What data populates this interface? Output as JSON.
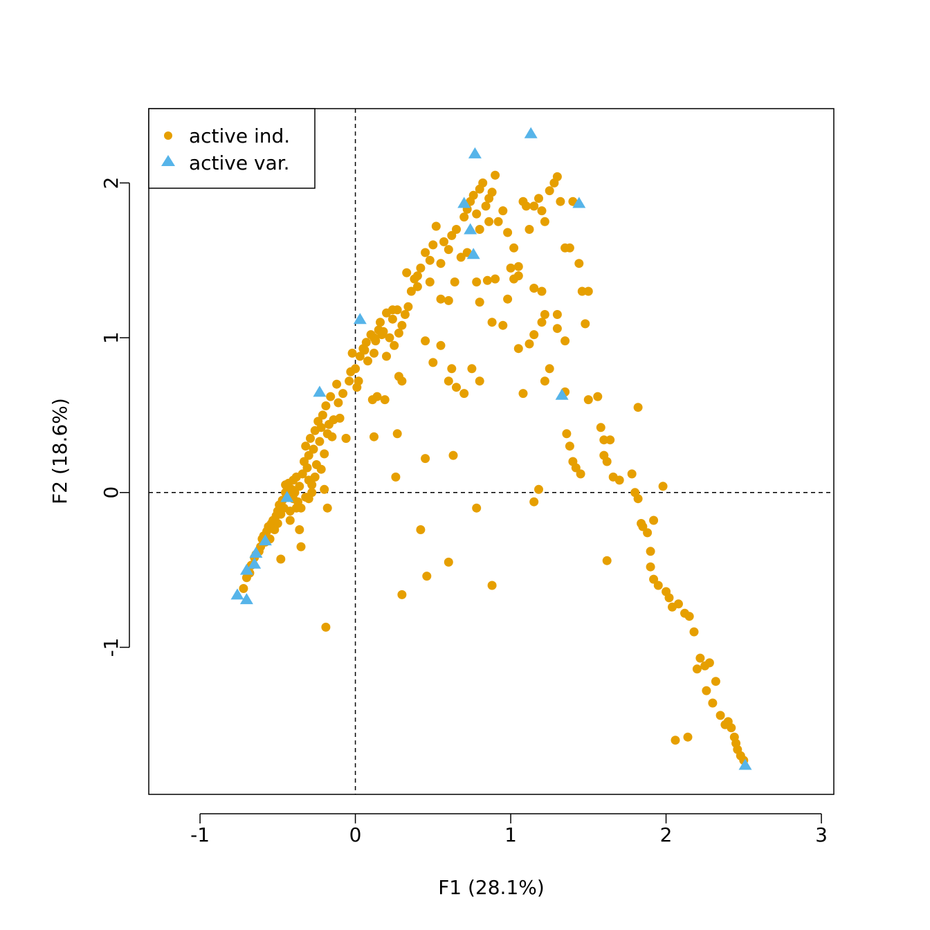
{
  "chart_data": {
    "type": "scatter",
    "xlabel": "F1 (28.1%)",
    "ylabel": "F2 (18.6%)",
    "xlim": [
      -1.33,
      3.08
    ],
    "ylim": [
      -1.95,
      2.48
    ],
    "xticks": [
      -1,
      0,
      1,
      2,
      3
    ],
    "yticks": [
      -1,
      0,
      1,
      2
    ],
    "xtick_labels": [
      "-1",
      "0",
      "1",
      "2",
      "3"
    ],
    "ytick_labels": [
      "-1",
      "0",
      "1",
      "2"
    ],
    "reference_lines": {
      "x": 0,
      "y": 0,
      "style": "dashed"
    },
    "legend_position": "top-left",
    "colors": {
      "ind": "#E69F00",
      "var": "#56B4E9"
    },
    "series": [
      {
        "name": "active ind.",
        "marker": "circle",
        "points": [
          [
            -0.72,
            -0.62
          ],
          [
            -0.7,
            -0.55
          ],
          [
            -0.68,
            -0.52
          ],
          [
            -0.67,
            -0.47
          ],
          [
            -0.65,
            -0.42
          ],
          [
            -0.64,
            -0.4
          ],
          [
            -0.62,
            -0.38
          ],
          [
            -0.61,
            -0.35
          ],
          [
            -0.6,
            -0.3
          ],
          [
            -0.59,
            -0.28
          ],
          [
            -0.58,
            -0.32
          ],
          [
            -0.57,
            -0.25
          ],
          [
            -0.56,
            -0.22
          ],
          [
            -0.55,
            -0.3
          ],
          [
            -0.54,
            -0.2
          ],
          [
            -0.53,
            -0.18
          ],
          [
            -0.52,
            -0.24
          ],
          [
            -0.51,
            -0.15
          ],
          [
            -0.5,
            -0.12
          ],
          [
            -0.5,
            -0.2
          ],
          [
            -0.49,
            -0.08
          ],
          [
            -0.48,
            -0.14
          ],
          [
            -0.47,
            -0.05
          ],
          [
            -0.46,
            -0.1
          ],
          [
            -0.45,
            0.0
          ],
          [
            -0.45,
            0.05
          ],
          [
            -0.44,
            -0.02
          ],
          [
            -0.43,
            0.06
          ],
          [
            -0.42,
            -0.12
          ],
          [
            -0.41,
            0.02
          ],
          [
            -0.4,
            0.08
          ],
          [
            -0.4,
            -0.04
          ],
          [
            -0.39,
            0.0
          ],
          [
            -0.38,
            0.1
          ],
          [
            -0.37,
            -0.06
          ],
          [
            -0.36,
            0.04
          ],
          [
            -0.35,
            -0.1
          ],
          [
            -0.34,
            0.12
          ],
          [
            -0.33,
            0.2
          ],
          [
            -0.32,
            0.3
          ],
          [
            -0.31,
            0.16
          ],
          [
            -0.3,
            0.24
          ],
          [
            -0.3,
            0.08
          ],
          [
            -0.29,
            0.35
          ],
          [
            -0.28,
            0.05
          ],
          [
            -0.27,
            0.28
          ],
          [
            -0.26,
            0.4
          ],
          [
            -0.25,
            0.18
          ],
          [
            -0.24,
            0.46
          ],
          [
            -0.23,
            0.33
          ],
          [
            -0.22,
            0.42
          ],
          [
            -0.21,
            0.5
          ],
          [
            -0.2,
            0.25
          ],
          [
            -0.19,
            0.56
          ],
          [
            -0.18,
            0.38
          ],
          [
            -0.17,
            0.44
          ],
          [
            -0.16,
            0.62
          ],
          [
            -0.15,
            0.36
          ],
          [
            -0.14,
            0.47
          ],
          [
            -0.12,
            0.7
          ],
          [
            -0.11,
            0.58
          ],
          [
            -0.1,
            0.48
          ],
          [
            -0.08,
            0.64
          ],
          [
            -0.06,
            0.35
          ],
          [
            -0.04,
            0.72
          ],
          [
            -0.03,
            0.78
          ],
          [
            -0.02,
            0.9
          ],
          [
            0.0,
            0.8
          ],
          [
            0.01,
            0.68
          ],
          [
            0.02,
            0.72
          ],
          [
            0.03,
            0.88
          ],
          [
            0.05,
            0.93
          ],
          [
            0.07,
            0.97
          ],
          [
            0.08,
            0.85
          ],
          [
            0.1,
            1.02
          ],
          [
            0.11,
            0.6
          ],
          [
            0.12,
            0.9
          ],
          [
            0.13,
            0.98
          ],
          [
            0.15,
            1.05
          ],
          [
            0.16,
            1.1
          ],
          [
            0.18,
            1.04
          ],
          [
            0.2,
            0.88
          ],
          [
            0.22,
            1.0
          ],
          [
            0.24,
            1.12
          ],
          [
            0.25,
            0.95
          ],
          [
            0.27,
            1.18
          ],
          [
            0.28,
            1.03
          ],
          [
            0.3,
            1.08
          ],
          [
            0.32,
            1.15
          ],
          [
            0.34,
            1.2
          ],
          [
            0.36,
            1.3
          ],
          [
            0.38,
            1.38
          ],
          [
            0.4,
            1.33
          ],
          [
            0.42,
            1.45
          ],
          [
            0.45,
            1.55
          ],
          [
            0.48,
            1.5
          ],
          [
            0.5,
            1.6
          ],
          [
            0.52,
            1.72
          ],
          [
            0.55,
            1.48
          ],
          [
            0.57,
            1.62
          ],
          [
            0.6,
            1.57
          ],
          [
            0.62,
            1.66
          ],
          [
            0.65,
            1.7
          ],
          [
            0.68,
            1.52
          ],
          [
            0.7,
            1.78
          ],
          [
            0.72,
            1.83
          ],
          [
            0.74,
            1.88
          ],
          [
            0.76,
            1.92
          ],
          [
            0.78,
            1.8
          ],
          [
            0.8,
            1.96
          ],
          [
            0.82,
            2.0
          ],
          [
            0.84,
            1.85
          ],
          [
            0.86,
            1.9
          ],
          [
            0.88,
            1.94
          ],
          [
            0.9,
            2.05
          ],
          [
            0.92,
            1.75
          ],
          [
            0.95,
            1.82
          ],
          [
            0.98,
            1.68
          ],
          [
            1.0,
            1.45
          ],
          [
            1.02,
            1.58
          ],
          [
            1.05,
            1.4
          ],
          [
            1.08,
            1.88
          ],
          [
            1.1,
            1.85
          ],
          [
            1.12,
            1.7
          ],
          [
            1.15,
            1.85
          ],
          [
            1.18,
            1.9
          ],
          [
            1.2,
            1.82
          ],
          [
            1.22,
            1.75
          ],
          [
            1.25,
            1.95
          ],
          [
            1.28,
            2.0
          ],
          [
            1.3,
            2.04
          ],
          [
            1.32,
            1.88
          ],
          [
            1.35,
            1.58
          ],
          [
            1.4,
            1.88
          ],
          [
            1.44,
            1.48
          ],
          [
            1.46,
            1.3
          ],
          [
            1.48,
            1.09
          ],
          [
            1.5,
            0.6
          ],
          [
            0.6,
            0.72
          ],
          [
            0.62,
            0.8
          ],
          [
            0.65,
            0.68
          ],
          [
            0.7,
            0.64
          ],
          [
            0.75,
            0.8
          ],
          [
            0.8,
            0.72
          ],
          [
            0.88,
            1.1
          ],
          [
            0.95,
            1.08
          ],
          [
            1.05,
            0.93
          ],
          [
            1.08,
            0.64
          ],
          [
            1.12,
            0.96
          ],
          [
            1.15,
            1.02
          ],
          [
            1.2,
            1.1
          ],
          [
            1.22,
            0.72
          ],
          [
            1.25,
            0.8
          ],
          [
            1.3,
            1.06
          ],
          [
            1.35,
            0.98
          ],
          [
            1.35,
            0.65
          ],
          [
            1.36,
            0.38
          ],
          [
            1.38,
            0.3
          ],
          [
            1.4,
            0.2
          ],
          [
            1.42,
            0.16
          ],
          [
            1.45,
            0.12
          ],
          [
            1.56,
            0.62
          ],
          [
            1.58,
            0.42
          ],
          [
            1.6,
            0.34
          ],
          [
            1.6,
            0.24
          ],
          [
            1.62,
            0.2
          ],
          [
            1.64,
            0.34
          ],
          [
            1.66,
            0.1
          ],
          [
            1.7,
            0.08
          ],
          [
            1.78,
            0.12
          ],
          [
            1.8,
            0.0
          ],
          [
            1.82,
            -0.04
          ],
          [
            1.82,
            0.55
          ],
          [
            1.84,
            -0.2
          ],
          [
            1.85,
            -0.22
          ],
          [
            1.88,
            -0.26
          ],
          [
            1.9,
            -0.38
          ],
          [
            1.9,
            -0.48
          ],
          [
            1.92,
            -0.18
          ],
          [
            1.92,
            -0.56
          ],
          [
            1.95,
            -0.6
          ],
          [
            1.98,
            0.04
          ],
          [
            2.0,
            -0.64
          ],
          [
            2.02,
            -0.68
          ],
          [
            2.04,
            -0.74
          ],
          [
            2.08,
            -0.72
          ],
          [
            2.12,
            -0.78
          ],
          [
            2.15,
            -0.8
          ],
          [
            2.18,
            -0.9
          ],
          [
            2.2,
            -1.14
          ],
          [
            2.22,
            -1.07
          ],
          [
            2.25,
            -1.12
          ],
          [
            2.26,
            -1.28
          ],
          [
            2.28,
            -1.1
          ],
          [
            2.3,
            -1.36
          ],
          [
            2.32,
            -1.22
          ],
          [
            2.35,
            -1.44
          ],
          [
            2.38,
            -1.5
          ],
          [
            2.4,
            -1.48
          ],
          [
            2.42,
            -1.52
          ],
          [
            2.44,
            -1.58
          ],
          [
            2.45,
            -1.62
          ],
          [
            2.46,
            -1.66
          ],
          [
            2.48,
            -1.7
          ],
          [
            2.5,
            -1.73
          ],
          [
            2.06,
            -1.6
          ],
          [
            2.14,
            -1.58
          ],
          [
            0.3,
            -0.66
          ],
          [
            0.42,
            -0.24
          ],
          [
            0.46,
            -0.54
          ],
          [
            0.6,
            -0.45
          ],
          [
            0.78,
            -0.1
          ],
          [
            0.88,
            -0.6
          ],
          [
            1.15,
            -0.06
          ],
          [
            1.18,
            0.02
          ],
          [
            1.62,
            -0.44
          ],
          [
            0.26,
            0.1
          ],
          [
            0.27,
            0.38
          ],
          [
            0.45,
            0.22
          ],
          [
            0.63,
            0.24
          ],
          [
            0.12,
            0.36
          ],
          [
            -0.06,
            0.35
          ],
          [
            -0.19,
            -0.87
          ],
          [
            -0.35,
            -0.35
          ],
          [
            -0.48,
            -0.43
          ],
          [
            0.45,
            0.98
          ],
          [
            0.55,
            0.95
          ],
          [
            0.28,
            0.75
          ],
          [
            0.3,
            0.72
          ],
          [
            0.19,
            0.6
          ],
          [
            0.14,
            0.62
          ],
          [
            0.5,
            0.84
          ],
          [
            0.55,
            1.25
          ],
          [
            0.6,
            1.24
          ],
          [
            0.78,
            1.36
          ],
          [
            0.8,
            1.23
          ],
          [
            0.85,
            1.37
          ],
          [
            0.9,
            1.38
          ],
          [
            0.98,
            1.25
          ],
          [
            1.02,
            1.38
          ],
          [
            1.05,
            1.46
          ],
          [
            1.15,
            1.32
          ],
          [
            1.2,
            1.3
          ],
          [
            1.22,
            1.15
          ],
          [
            1.3,
            1.15
          ],
          [
            1.38,
            1.58
          ],
          [
            1.5,
            1.3
          ],
          [
            0.72,
            1.55
          ],
          [
            0.8,
            1.7
          ],
          [
            0.86,
            1.75
          ],
          [
            0.64,
            1.36
          ],
          [
            0.48,
            1.36
          ],
          [
            0.4,
            1.4
          ],
          [
            0.33,
            1.42
          ],
          [
            0.24,
            1.18
          ],
          [
            0.2,
            1.16
          ],
          [
            0.17,
            1.02
          ],
          [
            0.12,
            1.0
          ],
          [
            0.06,
            0.92
          ],
          [
            -0.28,
            0.0
          ],
          [
            -0.32,
            -0.03
          ],
          [
            -0.38,
            -0.1
          ],
          [
            -0.42,
            -0.18
          ],
          [
            -0.36,
            -0.24
          ],
          [
            -0.3,
            -0.04
          ],
          [
            -0.26,
            0.1
          ],
          [
            -0.22,
            0.15
          ],
          [
            -0.2,
            0.02
          ],
          [
            -0.18,
            -0.1
          ]
        ]
      },
      {
        "name": "active var.",
        "marker": "triangle",
        "points": [
          [
            -0.76,
            -0.66
          ],
          [
            -0.7,
            -0.69
          ],
          [
            -0.7,
            -0.5
          ],
          [
            -0.65,
            -0.46
          ],
          [
            -0.64,
            -0.39
          ],
          [
            -0.58,
            -0.31
          ],
          [
            -0.44,
            -0.03
          ],
          [
            -0.23,
            0.65
          ],
          [
            0.03,
            1.12
          ],
          [
            0.7,
            1.87
          ],
          [
            0.74,
            1.7
          ],
          [
            0.76,
            1.54
          ],
          [
            0.77,
            2.19
          ],
          [
            1.13,
            2.32
          ],
          [
            1.33,
            0.63
          ],
          [
            1.44,
            1.87
          ],
          [
            2.51,
            -1.76
          ]
        ]
      }
    ]
  }
}
